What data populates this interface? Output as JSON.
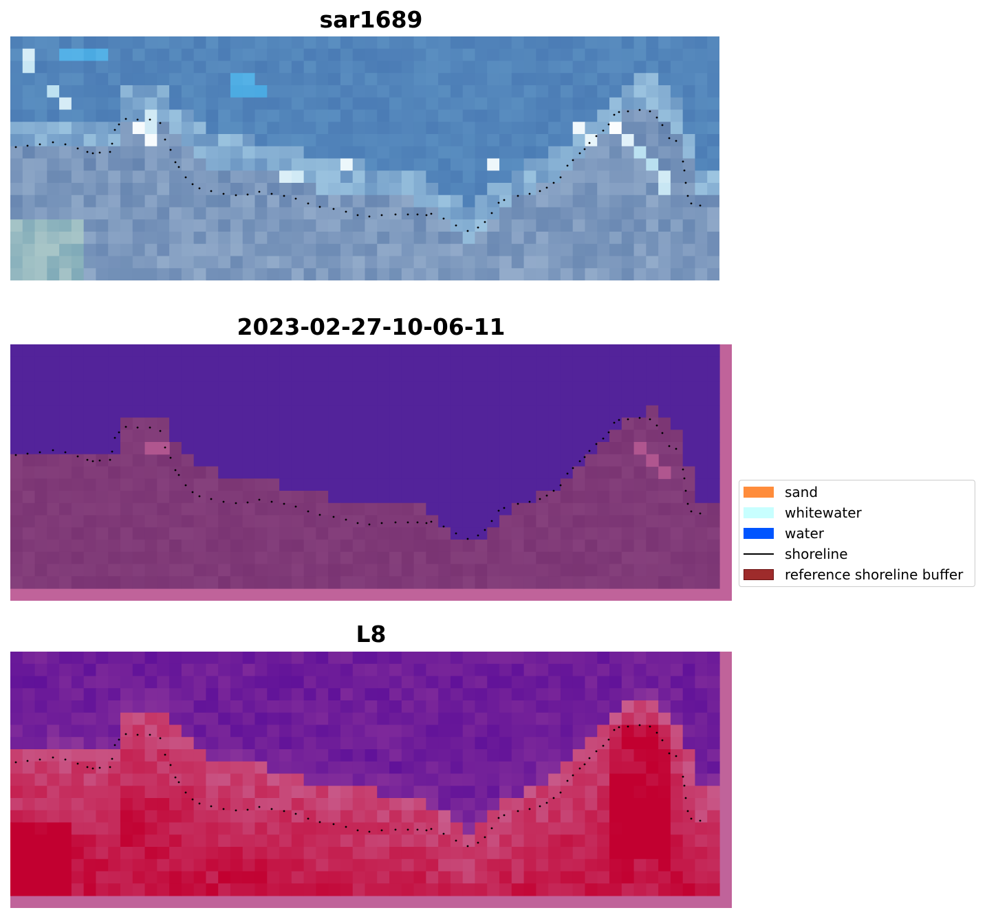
{
  "panels": [
    {
      "title": "sar1689"
    },
    {
      "title": "2023-02-27-10-06-11"
    },
    {
      "title": "L8"
    }
  ],
  "legend": {
    "items": [
      {
        "label": "sand",
        "color": "#ff8c3b",
        "kind": "patch"
      },
      {
        "label": "whitewater",
        "color": "#c8ffff",
        "kind": "patch"
      },
      {
        "label": "water",
        "color": "#0055ff",
        "kind": "patch"
      },
      {
        "label": "shoreline",
        "color": "#000000",
        "kind": "line"
      },
      {
        "label": "reference shoreline buffer",
        "color": "#9e2b2b",
        "kind": "patch"
      }
    ]
  },
  "colors": {
    "buffer_overlay": "#c0639a",
    "classified_water": "#53239a",
    "classified_land": "#7c3576",
    "index_low": "#4a0099",
    "index_high": "#c20030"
  }
}
